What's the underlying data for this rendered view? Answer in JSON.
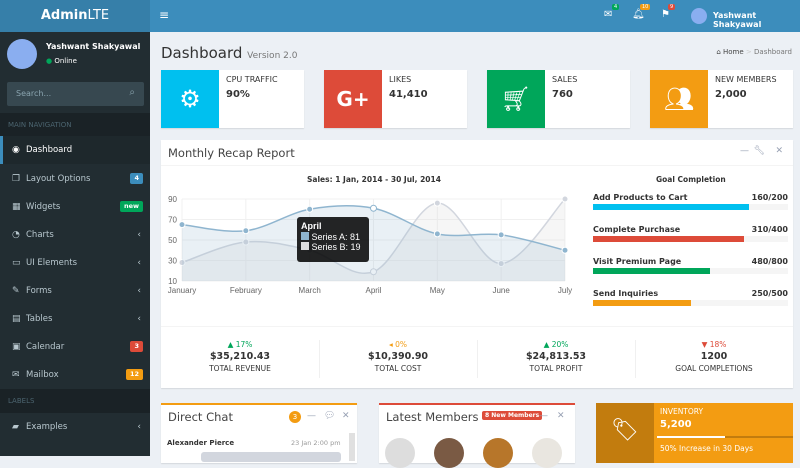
{
  "app": {
    "logo_bold": "Admin",
    "logo_light": "LTE"
  },
  "navbar": {
    "menu_icon": "hamburger-icon",
    "messages_badge": "4",
    "notifications_badge": "10",
    "tasks_badge": "9",
    "user_name": "Yashwant Shakyawal"
  },
  "sidebar": {
    "user_name": "Yashwant Shakyawal",
    "status": "Online",
    "search_placeholder": "Search...",
    "main_header": "MAIN NAVIGATION",
    "labels_header": "LABELS",
    "items": [
      {
        "label": "Dashboard",
        "icon": "dashboard-icon"
      },
      {
        "label": "Layout Options",
        "icon": "files-icon",
        "badge": "4",
        "badge_color": "#3c8dbc"
      },
      {
        "label": "Widgets",
        "icon": "th-icon",
        "badge": "new",
        "badge_color": "#00a65a"
      },
      {
        "label": "Charts",
        "icon": "pie-chart-icon"
      },
      {
        "label": "UI Elements",
        "icon": "laptop-icon"
      },
      {
        "label": "Forms",
        "icon": "edit-icon"
      },
      {
        "label": "Tables",
        "icon": "table-icon"
      },
      {
        "label": "Calendar",
        "icon": "calendar-icon",
        "badge": "3",
        "badge_color": "#dd4b39"
      },
      {
        "label": "Mailbox",
        "icon": "envelope-icon",
        "badge": "12",
        "badge_color": "#f39c12"
      },
      {
        "label": "Examples",
        "icon": "folder-icon"
      }
    ]
  },
  "page": {
    "title": "Dashboard",
    "subtitle": "Version 2.0",
    "breadcrumb": [
      "Home",
      "Dashboard"
    ]
  },
  "info_boxes": [
    {
      "label": "CPU TRAFFIC",
      "value": "90%",
      "color": "#00c0ef",
      "icon": "gear-icon"
    },
    {
      "label": "LIKES",
      "value": "41,410",
      "color": "#dd4b39",
      "icon": "google-plus-icon"
    },
    {
      "label": "SALES",
      "value": "760",
      "color": "#00a65a",
      "icon": "shopping-cart-icon"
    },
    {
      "label": "NEW MEMBERS",
      "value": "2,000",
      "color": "#f39c12",
      "icon": "users-icon"
    }
  ],
  "recap": {
    "title": "Monthly Recap Report",
    "goal_title": "Goal Completion",
    "goals": [
      {
        "label": "Add Products to Cart",
        "value": "160/200",
        "progress": 0.8,
        "color": "#00c0ef"
      },
      {
        "label": "Complete Purchase",
        "value": "310/400",
        "progress": 0.775,
        "color": "#dd4b39"
      },
      {
        "label": "Visit Premium Page",
        "value": "480/800",
        "progress": 0.6,
        "color": "#00a65a"
      },
      {
        "label": "Send Inquiries",
        "value": "250/500",
        "progress": 0.5,
        "color": "#f39c12"
      }
    ],
    "stats": [
      {
        "pct": "▲ 17%",
        "amount": "$35,210.43",
        "label": "TOTAL REVENUE",
        "color": "#00a65a"
      },
      {
        "pct": "◂ 0%",
        "amount": "$10,390.90",
        "label": "TOTAL COST",
        "color": "#f39c12"
      },
      {
        "pct": "▲ 20%",
        "amount": "$24,813.53",
        "label": "TOTAL PROFIT",
        "color": "#00a65a"
      },
      {
        "pct": "▼ 18%",
        "amount": "1200",
        "label": "GOAL COMPLETIONS",
        "color": "#dd4b39"
      }
    ]
  },
  "chart_data": {
    "type": "area",
    "title": "Sales: 1 Jan, 2014 - 30 Jul, 2014",
    "categories": [
      "January",
      "February",
      "March",
      "April",
      "May",
      "June",
      "July"
    ],
    "yticks": [
      10,
      30,
      50,
      70,
      90
    ],
    "ylim": [
      10,
      90
    ],
    "grid": true,
    "series": [
      {
        "name": "Series A",
        "values": [
          65,
          59,
          80,
          81,
          56,
          55,
          40
        ],
        "color": "#8fb5cf"
      },
      {
        "name": "Series B",
        "values": [
          28,
          48,
          40,
          19,
          86,
          27,
          90
        ],
        "color": "#d2d6de"
      }
    ],
    "tooltip": {
      "title": "April",
      "lines": [
        "Series A: 81",
        "Series B: 19"
      ]
    }
  },
  "chat": {
    "title": "Direct Chat",
    "badge": "3",
    "sender": "Alexander Pierce",
    "time": "23 Jan 2:00 pm"
  },
  "members": {
    "title": "Latest Members",
    "badge": "8 New Members"
  },
  "inventory": {
    "label": "INVENTORY",
    "value": "5,200",
    "progress": 0.5,
    "description": "50% Increase in 30 Days",
    "icon": "tag-icon"
  }
}
